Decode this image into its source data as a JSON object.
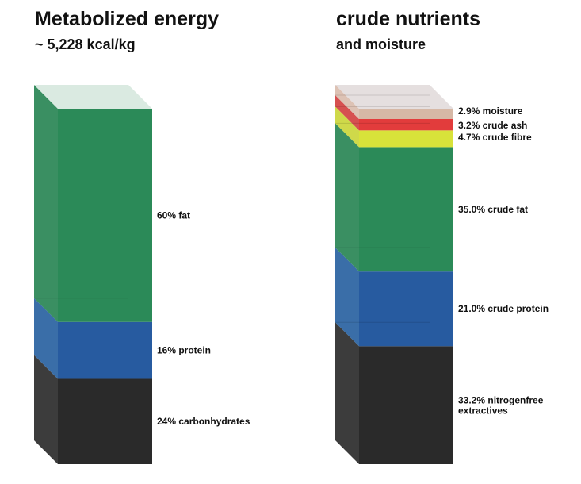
{
  "chart_data": [
    {
      "type": "stacked-bar-3d",
      "title": "Metabolized energy",
      "subtitle": "~ 5,228 kcal/kg",
      "unit": "%",
      "segments": [
        {
          "label": "24% carbonhydrates",
          "value": 24,
          "color": "#2a2a2a",
          "side": "#3c3c3c"
        },
        {
          "label": "16% protein",
          "value": 16,
          "color": "#275ba0",
          "side": "#3a6ea8"
        },
        {
          "label": "60% fat",
          "value": 60,
          "color": "#2b8a58",
          "side": "#3a8f62"
        }
      ],
      "top_color": "#d6e8de"
    },
    {
      "type": "stacked-bar-3d",
      "title": "crude nutrients",
      "subtitle": "and moisture",
      "unit": "%",
      "segments": [
        {
          "label_lines": [
            "33.2% nitrogenfree",
            "extractives"
          ],
          "value": 33.2,
          "color": "#2a2a2a",
          "side": "#3c3c3c"
        },
        {
          "label_lines": [
            "21.0% crude protein"
          ],
          "value": 21.0,
          "color": "#275ba0",
          "side": "#3a6ea8"
        },
        {
          "label_lines": [
            "35.0% crude fat"
          ],
          "value": 35.0,
          "color": "#2b8a58",
          "side": "#3a8f62"
        },
        {
          "label_lines": [
            "4.7% crude fibre"
          ],
          "value": 4.7,
          "color": "#d8e23a",
          "side": "#cfd94a"
        },
        {
          "label_lines": [
            "3.2% crude ash"
          ],
          "value": 3.2,
          "color": "#e23c3c",
          "side": "#d65050"
        },
        {
          "label_lines": [
            "2.9% moisture"
          ],
          "value": 2.9,
          "color": "#d6b8a6",
          "side": "#ddc2b4"
        }
      ],
      "top_color": "#e2dcdc"
    }
  ]
}
